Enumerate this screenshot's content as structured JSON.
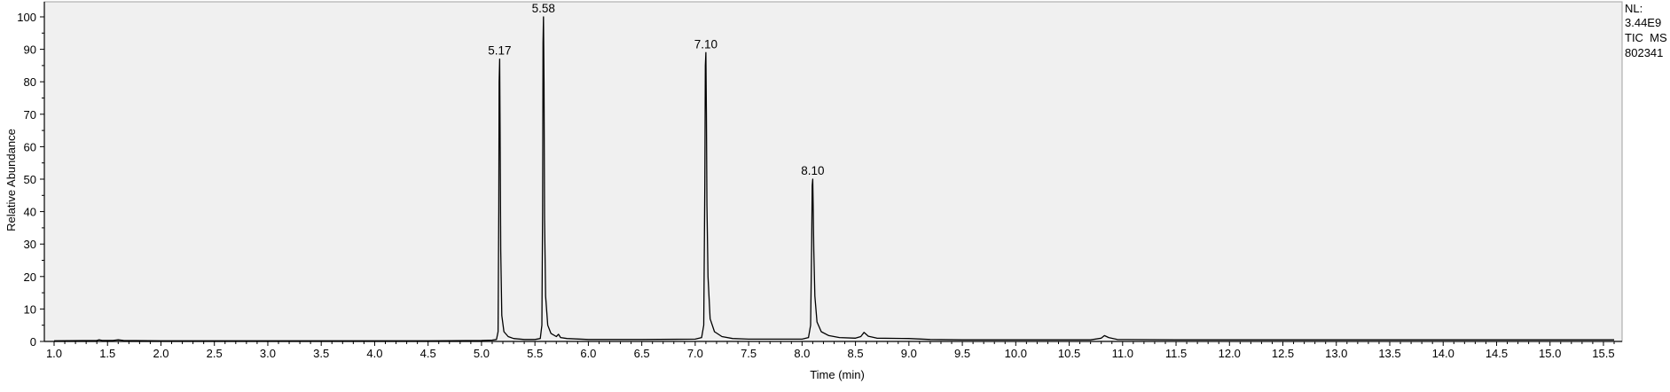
{
  "chart_data": {
    "type": "line",
    "xlabel": "Time (min)",
    "ylabel": "Relative Abundance",
    "xlim": [
      1.0,
      15.6
    ],
    "ylim": [
      0,
      100
    ],
    "x_ticks": [
      "1.0",
      "1.5",
      "2.0",
      "2.5",
      "3.0",
      "3.5",
      "4.0",
      "4.5",
      "5.0",
      "5.5",
      "6.0",
      "6.5",
      "7.0",
      "7.5",
      "8.0",
      "8.5",
      "9.0",
      "9.5",
      "10.0",
      "10.5",
      "11.0",
      "11.5",
      "12.0",
      "12.5",
      "13.0",
      "13.5",
      "14.0",
      "14.5",
      "15.0",
      "15.5"
    ],
    "y_ticks": [
      "0",
      "10",
      "20",
      "30",
      "40",
      "50",
      "60",
      "70",
      "80",
      "90",
      "100"
    ],
    "grid": false,
    "plot_background": "#f0f0f0",
    "line_color": "#000000",
    "info_text": [
      "NL:",
      "3.44E9",
      "TIC  MS",
      "802341"
    ],
    "peak_labels": [
      {
        "x": 5.17,
        "y": 87,
        "label": "5.17"
      },
      {
        "x": 5.58,
        "y": 100,
        "label": "5.58"
      },
      {
        "x": 7.1,
        "y": 89,
        "label": "7.10"
      },
      {
        "x": 8.1,
        "y": 50,
        "label": "8.10"
      }
    ],
    "trace": [
      [
        1.0,
        0.2
      ],
      [
        1.4,
        0.3
      ],
      [
        1.42,
        0.5
      ],
      [
        1.45,
        0.3
      ],
      [
        1.55,
        0.3
      ],
      [
        1.6,
        0.5
      ],
      [
        1.65,
        0.3
      ],
      [
        2.0,
        0.2
      ],
      [
        3.0,
        0.2
      ],
      [
        4.0,
        0.2
      ],
      [
        4.5,
        0.2
      ],
      [
        5.0,
        0.3
      ],
      [
        5.1,
        0.4
      ],
      [
        5.14,
        0.6
      ],
      [
        5.155,
        3
      ],
      [
        5.162,
        40
      ],
      [
        5.165,
        80
      ],
      [
        5.17,
        87
      ],
      [
        5.175,
        60
      ],
      [
        5.18,
        28
      ],
      [
        5.19,
        8
      ],
      [
        5.21,
        3
      ],
      [
        5.25,
        1.5
      ],
      [
        5.3,
        0.9
      ],
      [
        5.4,
        0.6
      ],
      [
        5.5,
        0.6
      ],
      [
        5.55,
        0.9
      ],
      [
        5.565,
        5
      ],
      [
        5.572,
        40
      ],
      [
        5.576,
        92
      ],
      [
        5.58,
        100
      ],
      [
        5.585,
        80
      ],
      [
        5.59,
        38
      ],
      [
        5.6,
        14
      ],
      [
        5.62,
        5
      ],
      [
        5.65,
        2.5
      ],
      [
        5.7,
        1.5
      ],
      [
        5.72,
        2.2
      ],
      [
        5.74,
        1.2
      ],
      [
        5.8,
        0.9
      ],
      [
        6.0,
        0.6
      ],
      [
        6.5,
        0.6
      ],
      [
        7.0,
        0.7
      ],
      [
        7.06,
        1.2
      ],
      [
        7.08,
        5
      ],
      [
        7.09,
        48
      ],
      [
        7.095,
        85
      ],
      [
        7.1,
        89
      ],
      [
        7.105,
        70
      ],
      [
        7.11,
        42
      ],
      [
        7.12,
        20
      ],
      [
        7.14,
        7
      ],
      [
        7.18,
        3
      ],
      [
        7.25,
        1.5
      ],
      [
        7.35,
        0.9
      ],
      [
        7.5,
        0.7
      ],
      [
        8.0,
        0.7
      ],
      [
        8.06,
        1.2
      ],
      [
        8.08,
        5
      ],
      [
        8.09,
        30
      ],
      [
        8.095,
        48
      ],
      [
        8.1,
        50
      ],
      [
        8.105,
        40
      ],
      [
        8.11,
        28
      ],
      [
        8.12,
        14
      ],
      [
        8.14,
        6
      ],
      [
        8.18,
        3
      ],
      [
        8.25,
        1.8
      ],
      [
        8.35,
        1.2
      ],
      [
        8.5,
        1.0
      ],
      [
        8.55,
        1.5
      ],
      [
        8.58,
        2.8
      ],
      [
        8.62,
        1.6
      ],
      [
        8.7,
        1.0
      ],
      [
        9.0,
        0.9
      ],
      [
        9.2,
        0.6
      ],
      [
        9.5,
        0.5
      ],
      [
        10.0,
        0.5
      ],
      [
        10.7,
        0.5
      ],
      [
        10.8,
        1.0
      ],
      [
        10.83,
        1.8
      ],
      [
        10.87,
        1.2
      ],
      [
        10.95,
        0.6
      ],
      [
        11.5,
        0.5
      ],
      [
        12.5,
        0.5
      ],
      [
        13.5,
        0.5
      ],
      [
        14.5,
        0.5
      ],
      [
        15.6,
        0.5
      ]
    ]
  }
}
